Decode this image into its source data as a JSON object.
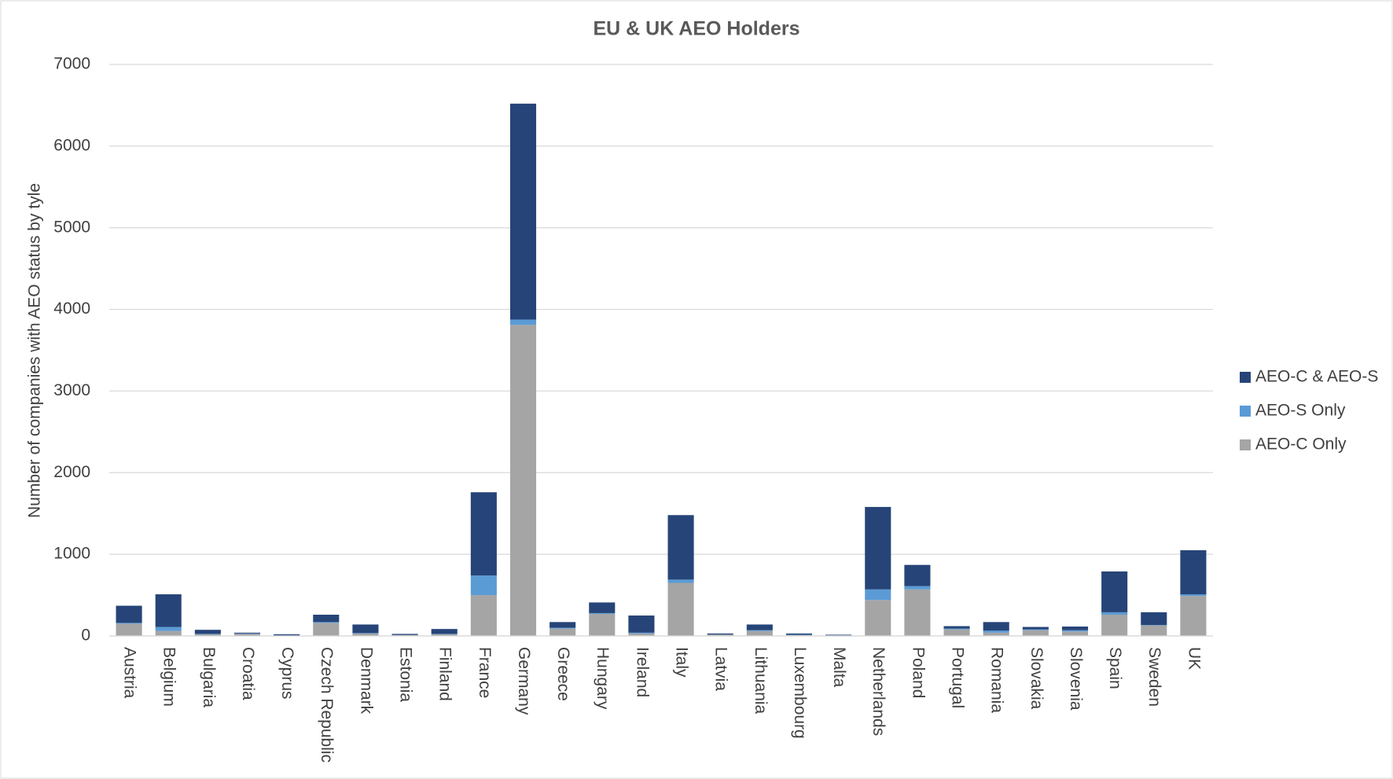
{
  "chart_data": {
    "type": "stacked_bar",
    "title": "EU & UK AEO Holders",
    "y_label": "Number of companies with AEO status by tyle",
    "categories": [
      "Austria",
      "Belgium",
      "Bulgaria",
      "Croatia",
      "Cyprus",
      "Czech Republic",
      "Denmark",
      "Estonia",
      "Finland",
      "France",
      "Germany",
      "Greece",
      "Hungary",
      "Ireland",
      "Italy",
      "Latvia",
      "Lithuania",
      "Luxembourg",
      "Malta",
      "Netherlands",
      "Poland",
      "Portugal",
      "Romania",
      "Slovakia",
      "Slovenia",
      "Spain",
      "Sweden",
      "UK"
    ],
    "series": [
      {
        "name": "AEO-C Only",
        "color": "#a5a5a5",
        "values": [
          150,
          60,
          20,
          25,
          5,
          160,
          30,
          10,
          20,
          500,
          3810,
          90,
          270,
          30,
          650,
          15,
          60,
          10,
          5,
          440,
          570,
          80,
          40,
          70,
          55,
          260,
          130,
          490
        ]
      },
      {
        "name": "AEO-S Only",
        "color": "#5b9bd5",
        "values": [
          10,
          50,
          5,
          5,
          2,
          10,
          5,
          2,
          5,
          240,
          65,
          10,
          10,
          10,
          40,
          2,
          10,
          5,
          2,
          130,
          40,
          10,
          25,
          10,
          15,
          30,
          5,
          20
        ]
      },
      {
        "name": "AEO-C & AEO-S",
        "color": "#264478",
        "values": [
          210,
          400,
          50,
          10,
          13,
          90,
          105,
          13,
          60,
          1020,
          2645,
          70,
          130,
          210,
          790,
          13,
          70,
          15,
          8,
          1010,
          260,
          30,
          105,
          30,
          45,
          500,
          155,
          540
        ]
      }
    ],
    "ylim": [
      0,
      7000
    ],
    "yticks": [
      0,
      1000,
      2000,
      3000,
      4000,
      5000,
      6000,
      7000
    ],
    "grid": true,
    "legend": "right"
  }
}
